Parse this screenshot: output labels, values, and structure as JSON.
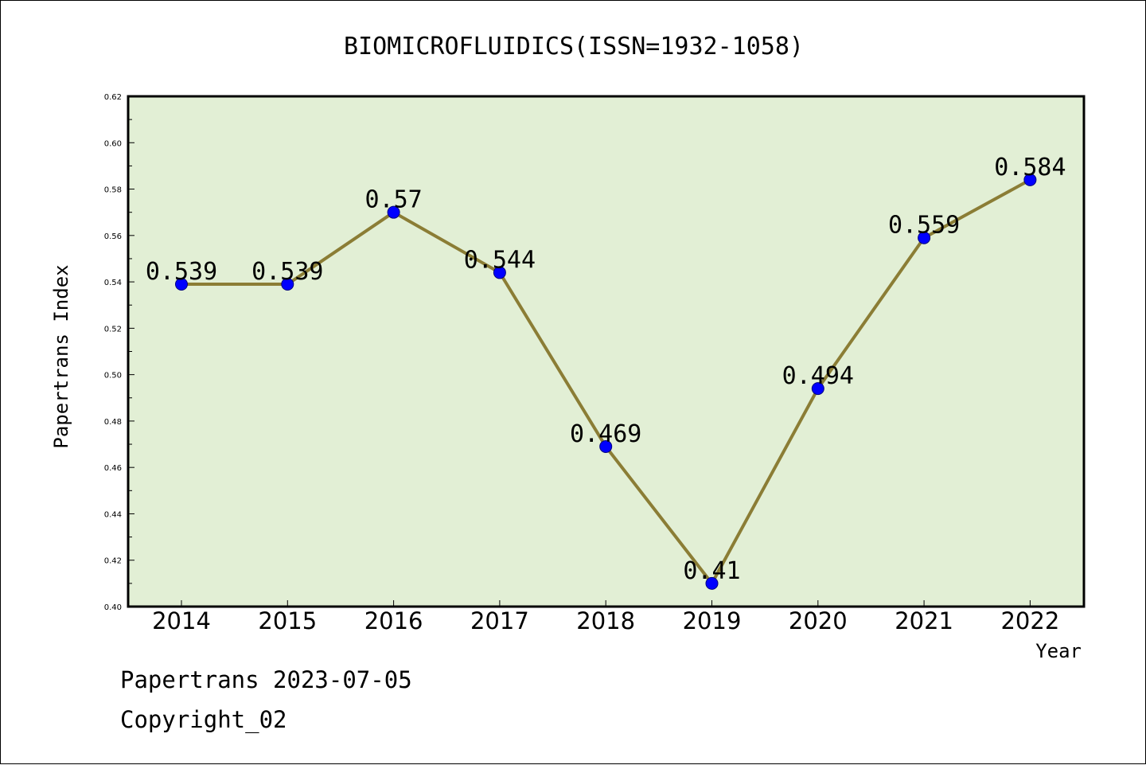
{
  "chart_data": {
    "type": "line",
    "title": "BIOMICROFLUIDICS(ISSN=1932-1058)",
    "xlabel": "Year",
    "ylabel": "Papertrans Index",
    "categories": [
      "2014",
      "2015",
      "2016",
      "2017",
      "2018",
      "2019",
      "2020",
      "2021",
      "2022"
    ],
    "series": [
      {
        "values": [
          0.539,
          0.539,
          0.57,
          0.544,
          0.469,
          0.41,
          0.494,
          0.559,
          0.584
        ]
      }
    ],
    "data_labels": [
      "0.539",
      "0.539",
      "0.57",
      "0.544",
      "0.469",
      "0.41",
      "0.494",
      "0.559",
      "0.584"
    ],
    "yticks": [
      "0.40",
      "0.42",
      "0.44",
      "0.46",
      "0.48",
      "0.50",
      "0.52",
      "0.54",
      "0.56",
      "0.58",
      "0.60",
      "0.62"
    ],
    "ylim": [
      0.4,
      0.62
    ],
    "grid": false,
    "legend": "none",
    "colors": {
      "plot_background": "#e2efd5",
      "line": "#8b7d35",
      "marker": "#0000ff",
      "marker_edge": "#000080"
    }
  },
  "footer": {
    "line1": "Papertrans 2023-07-05",
    "line2": "Copyright_02"
  }
}
